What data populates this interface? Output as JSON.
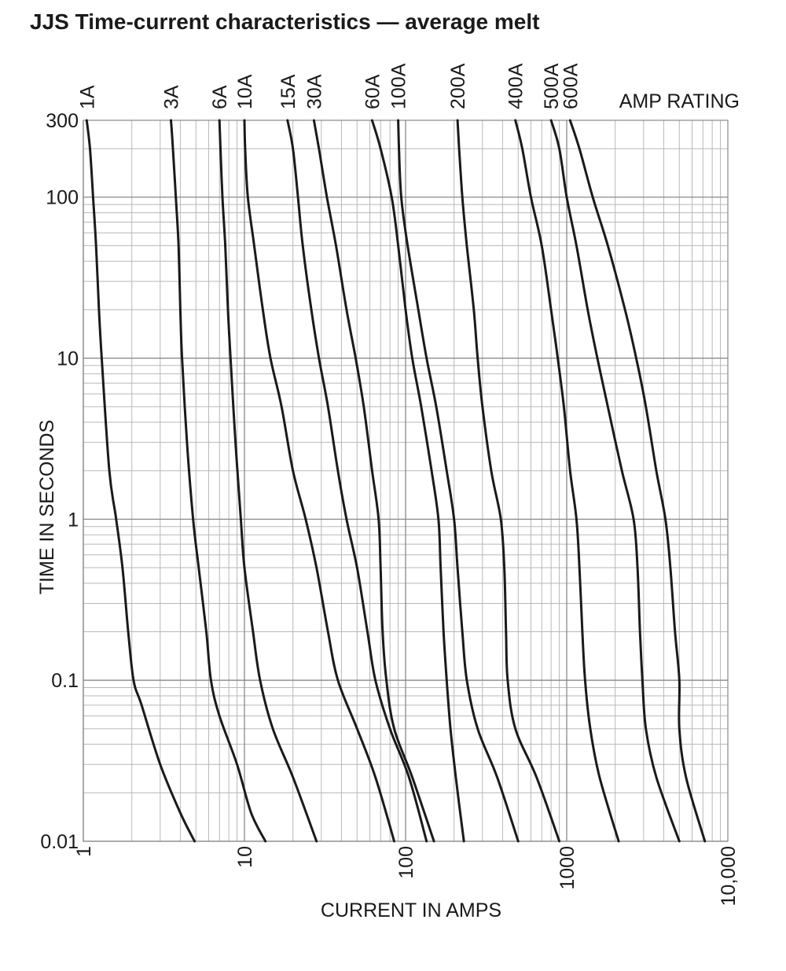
{
  "chart_data": {
    "type": "line",
    "title": "JJS Time-current characteristics — average melt",
    "xlabel": "CURRENT IN AMPS",
    "ylabel": "TIME IN SECONDS",
    "xscale": "log",
    "yscale": "log",
    "xlim": [
      1,
      10000
    ],
    "ylim": [
      0.01,
      300
    ],
    "x_tick_labels": [
      "1",
      "10",
      "100",
      "1000",
      "10,000"
    ],
    "y_tick_labels": [
      "300",
      "100",
      "10",
      "1",
      "0.1",
      "0.01"
    ],
    "legend_title": "AMP RATING",
    "grid": true,
    "series": [
      {
        "name": "1A",
        "points": [
          [
            1.05,
            300
          ],
          [
            1.1,
            200
          ],
          [
            1.15,
            100
          ],
          [
            1.2,
            50
          ],
          [
            1.25,
            20
          ],
          [
            1.3,
            10
          ],
          [
            1.45,
            2
          ],
          [
            1.6,
            1
          ],
          [
            1.75,
            0.5
          ],
          [
            1.9,
            0.2
          ],
          [
            2.05,
            0.1
          ],
          [
            2.3,
            0.07
          ],
          [
            3,
            0.03
          ],
          [
            4,
            0.015
          ],
          [
            4.9,
            0.01
          ]
        ]
      },
      {
        "name": "3A",
        "points": [
          [
            3.5,
            300
          ],
          [
            3.6,
            200
          ],
          [
            3.75,
            100
          ],
          [
            3.9,
            50
          ],
          [
            4.0,
            20
          ],
          [
            4.1,
            10
          ],
          [
            4.4,
            3
          ],
          [
            4.8,
            1
          ],
          [
            5.2,
            0.5
          ],
          [
            5.8,
            0.2
          ],
          [
            6.2,
            0.1
          ],
          [
            7,
            0.06
          ],
          [
            9,
            0.03
          ],
          [
            11,
            0.015
          ],
          [
            13.5,
            0.01
          ]
        ]
      },
      {
        "name": "6A",
        "points": [
          [
            7.0,
            300
          ],
          [
            7.1,
            200
          ],
          [
            7.3,
            100
          ],
          [
            7.6,
            50
          ],
          [
            7.9,
            20
          ],
          [
            8.2,
            10
          ],
          [
            8.8,
            3
          ],
          [
            9.5,
            1
          ],
          [
            10,
            0.5
          ],
          [
            11.3,
            0.2
          ],
          [
            12.5,
            0.1
          ],
          [
            15,
            0.05
          ],
          [
            20,
            0.025
          ],
          [
            28,
            0.01
          ]
        ]
      },
      {
        "name": "10A",
        "points": [
          [
            10.0,
            300
          ],
          [
            10.1,
            200
          ],
          [
            10.5,
            100
          ],
          [
            11.5,
            50
          ],
          [
            13,
            20
          ],
          [
            14.5,
            10
          ],
          [
            17,
            5
          ],
          [
            20,
            2
          ],
          [
            24,
            1
          ],
          [
            28,
            0.5
          ],
          [
            33,
            0.2
          ],
          [
            38,
            0.1
          ],
          [
            50,
            0.05
          ],
          [
            65,
            0.025
          ],
          [
            85,
            0.01
          ]
        ]
      },
      {
        "name": "15A",
        "points": [
          [
            18.5,
            300
          ],
          [
            20,
            200
          ],
          [
            21.5,
            100
          ],
          [
            23,
            50
          ],
          [
            26,
            20
          ],
          [
            29,
            10
          ],
          [
            33,
            5
          ],
          [
            38,
            2
          ],
          [
            43,
            1
          ],
          [
            50,
            0.5
          ],
          [
            58,
            0.2
          ],
          [
            65,
            0.1
          ],
          [
            80,
            0.05
          ],
          [
            105,
            0.025
          ],
          [
            135,
            0.01
          ]
        ]
      },
      {
        "name": "30A",
        "points": [
          [
            27,
            300
          ],
          [
            29,
            200
          ],
          [
            32.5,
            100
          ],
          [
            37,
            50
          ],
          [
            43,
            20
          ],
          [
            49,
            10
          ],
          [
            55,
            5
          ],
          [
            62,
            2
          ],
          [
            68,
            1
          ],
          [
            70,
            0.5
          ],
          [
            72,
            0.2
          ],
          [
            76,
            0.1
          ],
          [
            85,
            0.05
          ],
          [
            110,
            0.025
          ],
          [
            150,
            0.01
          ]
        ]
      },
      {
        "name": "60A",
        "points": [
          [
            62,
            300
          ],
          [
            70,
            200
          ],
          [
            82,
            100
          ],
          [
            90,
            50
          ],
          [
            100,
            20
          ],
          [
            110,
            10
          ],
          [
            125,
            5
          ],
          [
            145,
            2
          ],
          [
            160,
            1
          ],
          [
            165,
            0.5
          ],
          [
            172,
            0.2
          ],
          [
            180,
            0.1
          ],
          [
            190,
            0.05
          ],
          [
            205,
            0.025
          ],
          [
            230,
            0.01
          ]
        ]
      },
      {
        "name": "100A",
        "points": [
          [
            90,
            300
          ],
          [
            91,
            200
          ],
          [
            94,
            100
          ],
          [
            103,
            50
          ],
          [
            120,
            20
          ],
          [
            135,
            10
          ],
          [
            155,
            5
          ],
          [
            180,
            2
          ],
          [
            200,
            1
          ],
          [
            210,
            0.5
          ],
          [
            225,
            0.2
          ],
          [
            240,
            0.1
          ],
          [
            280,
            0.05
          ],
          [
            370,
            0.025
          ],
          [
            500,
            0.01
          ]
        ]
      },
      {
        "name": "200A",
        "points": [
          [
            210,
            300
          ],
          [
            215,
            200
          ],
          [
            225,
            100
          ],
          [
            240,
            50
          ],
          [
            265,
            20
          ],
          [
            280,
            10
          ],
          [
            300,
            5
          ],
          [
            340,
            2
          ],
          [
            390,
            1
          ],
          [
            410,
            0.5
          ],
          [
            420,
            0.2
          ],
          [
            430,
            0.1
          ],
          [
            480,
            0.05
          ],
          [
            650,
            0.025
          ],
          [
            900,
            0.01
          ]
        ]
      },
      {
        "name": "400A",
        "points": [
          [
            480,
            300
          ],
          [
            530,
            200
          ],
          [
            600,
            100
          ],
          [
            700,
            50
          ],
          [
            800,
            20
          ],
          [
            880,
            10
          ],
          [
            960,
            5
          ],
          [
            1050,
            2
          ],
          [
            1150,
            1
          ],
          [
            1200,
            0.5
          ],
          [
            1250,
            0.2
          ],
          [
            1300,
            0.1
          ],
          [
            1400,
            0.05
          ],
          [
            1600,
            0.025
          ],
          [
            2100,
            0.01
          ]
        ]
      },
      {
        "name": "500A",
        "points": [
          [
            800,
            300
          ],
          [
            900,
            200
          ],
          [
            1000,
            100
          ],
          [
            1150,
            50
          ],
          [
            1350,
            20
          ],
          [
            1550,
            10
          ],
          [
            1800,
            5
          ],
          [
            2200,
            2
          ],
          [
            2600,
            1
          ],
          [
            2750,
            0.5
          ],
          [
            2850,
            0.2
          ],
          [
            2950,
            0.1
          ],
          [
            3100,
            0.05
          ],
          [
            3600,
            0.025
          ],
          [
            5000,
            0.01
          ]
        ]
      },
      {
        "name": "600A",
        "points": [
          [
            1050,
            300
          ],
          [
            1200,
            200
          ],
          [
            1450,
            100
          ],
          [
            1800,
            50
          ],
          [
            2300,
            20
          ],
          [
            2700,
            10
          ],
          [
            3100,
            5
          ],
          [
            3600,
            2
          ],
          [
            4100,
            1
          ],
          [
            4400,
            0.5
          ],
          [
            4700,
            0.2
          ],
          [
            5000,
            0.1
          ],
          [
            5000,
            0.05
          ],
          [
            5500,
            0.025
          ],
          [
            7200,
            0.01
          ]
        ]
      }
    ]
  }
}
